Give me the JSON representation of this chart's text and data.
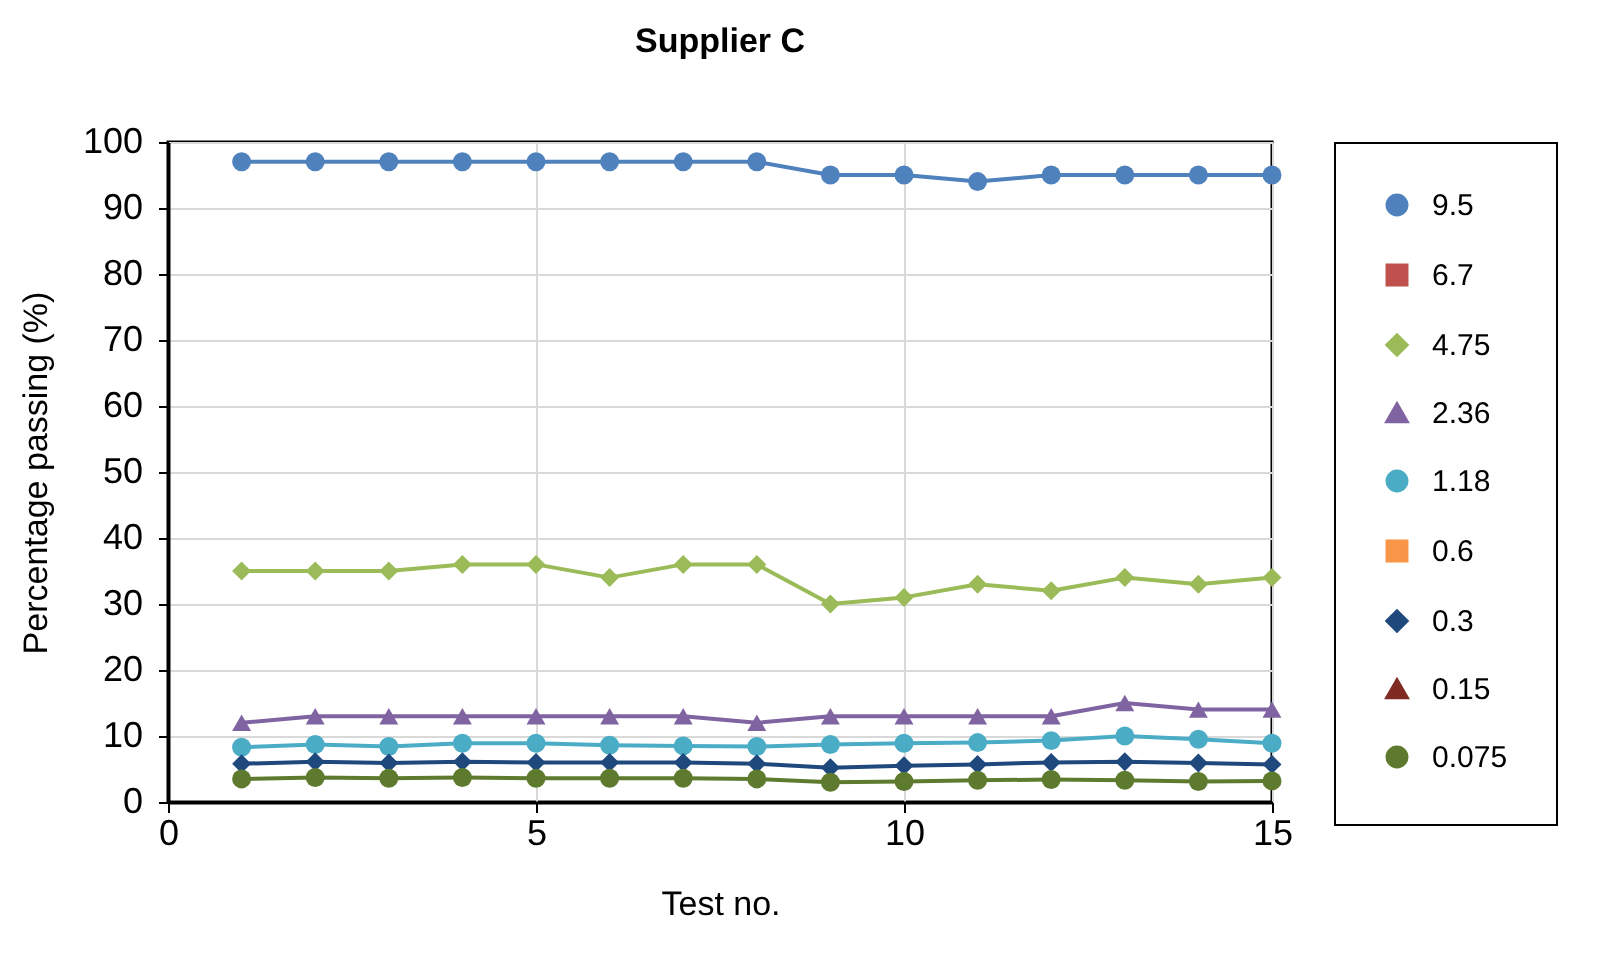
{
  "chart_data": {
    "type": "line",
    "title": "Supplier C",
    "xlabel": "Test no.",
    "ylabel": "Percentage passing (%)",
    "x": [
      1,
      2,
      3,
      4,
      5,
      6,
      7,
      8,
      9,
      10,
      11,
      12,
      13,
      14,
      15
    ],
    "xlim": [
      0,
      15
    ],
    "xticks": [
      0,
      5,
      10,
      15
    ],
    "ylim": [
      0,
      100
    ],
    "yticks": [
      0,
      10,
      20,
      30,
      40,
      50,
      60,
      70,
      80,
      90,
      100
    ],
    "grid": true,
    "legend": "right",
    "series": [
      {
        "name": "9.5",
        "color": "#4f81bd",
        "marker": "circle",
        "values": [
          97,
          97,
          97,
          97,
          97,
          97,
          97,
          97,
          95,
          95,
          94,
          95,
          95,
          95,
          95
        ]
      },
      {
        "name": "6.7",
        "color": "#c0504d",
        "marker": "square",
        "values": [
          null,
          null,
          null,
          null,
          null,
          null,
          null,
          null,
          null,
          null,
          null,
          null,
          null,
          null,
          null
        ]
      },
      {
        "name": "4.75",
        "color": "#9bbb59",
        "marker": "diamond",
        "values": [
          35,
          35,
          35,
          36,
          36,
          34,
          36,
          36,
          30,
          31,
          33,
          32,
          34,
          33,
          34
        ]
      },
      {
        "name": "2.36",
        "color": "#8064a2",
        "marker": "triangle",
        "values": [
          12,
          13,
          13,
          13,
          13,
          13,
          13,
          12,
          13,
          13,
          13,
          13,
          15,
          14,
          14
        ]
      },
      {
        "name": "1.18",
        "color": "#4bacc6",
        "marker": "circle",
        "values": [
          8.3,
          8.7,
          8.4,
          8.9,
          8.9,
          8.6,
          8.5,
          8.4,
          8.7,
          8.9,
          9,
          9.3,
          10,
          9.5,
          8.9
        ]
      },
      {
        "name": "0.6",
        "color": "#f79646",
        "marker": "square",
        "values": [
          null,
          null,
          null,
          null,
          null,
          null,
          null,
          null,
          null,
          null,
          null,
          null,
          null,
          null,
          null
        ]
      },
      {
        "name": "0.3",
        "color": "#1f497d",
        "marker": "diamond",
        "values": [
          5.8,
          6.1,
          5.9,
          6.1,
          6,
          6,
          6,
          5.8,
          5.2,
          5.5,
          5.7,
          6,
          6.1,
          5.9,
          5.7
        ]
      },
      {
        "name": "0.15",
        "color": "#7f2a22",
        "marker": "triangle",
        "values": [
          null,
          null,
          null,
          null,
          null,
          null,
          null,
          null,
          null,
          null,
          null,
          null,
          null,
          null,
          null
        ]
      },
      {
        "name": "0.075",
        "color": "#5e7a2e",
        "marker": "circle",
        "values": [
          3.5,
          3.7,
          3.6,
          3.7,
          3.6,
          3.6,
          3.6,
          3.5,
          3,
          3.1,
          3.3,
          3.4,
          3.3,
          3.1,
          3.2
        ]
      }
    ]
  }
}
